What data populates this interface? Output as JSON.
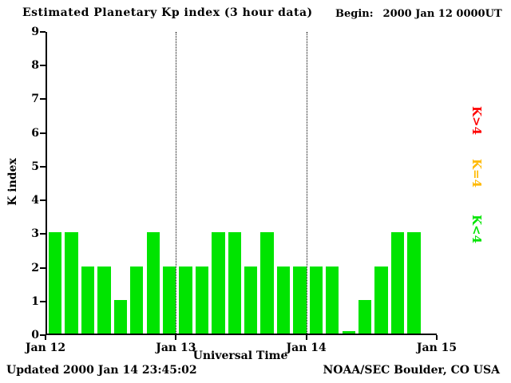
{
  "begin": {
    "label": "Begin:",
    "value": "2000 Jan 12 0000UT"
  },
  "footer": {
    "updated": "Updated 2000 Jan 14 23:45:02",
    "source": "NOAA/SEC Boulder, CO USA"
  },
  "legend": [
    {
      "label": "K>4",
      "color": "#ff0000"
    },
    {
      "label": "K=4",
      "color": "#ffb900"
    },
    {
      "label": "K<4",
      "color": "#00e400"
    }
  ],
  "chart_data": {
    "type": "bar",
    "title": "Estimated Planetary Kp index (3 hour data)",
    "xlabel": "Universal Time",
    "ylabel": "K index",
    "ylim": [
      0,
      9
    ],
    "y_ticks": [
      0,
      1,
      2,
      3,
      4,
      5,
      6,
      7,
      8,
      9
    ],
    "x_ticks": [
      "Jan 12",
      "Jan 13",
      "Jan 14",
      "Jan 15"
    ],
    "bars_per_day": 8,
    "values": [
      3,
      3,
      2,
      2,
      1,
      2,
      3,
      2,
      2,
      2,
      3,
      3,
      2,
      3,
      2,
      2,
      2,
      2,
      0,
      1,
      2,
      3,
      3
    ],
    "bar_color": "#00e400",
    "grid_lines_at_days": [
      1,
      2
    ],
    "grid": "vertical-dotted-at-day-boundaries",
    "legend_position": "right-rotated"
  }
}
